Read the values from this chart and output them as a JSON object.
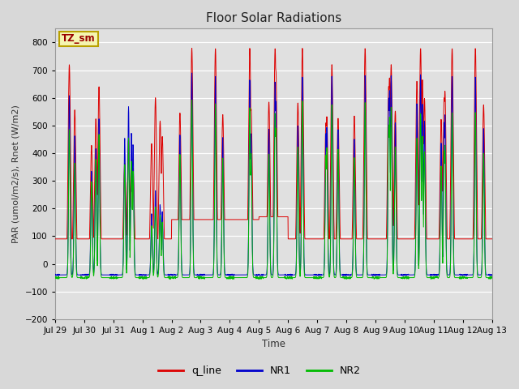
{
  "title": "Floor Solar Radiations",
  "ylabel": "PAR (umol/m2/s), Rnet (W/m2)",
  "xlabel": "Time",
  "ylim": [
    -200,
    850
  ],
  "yticks": [
    -200,
    -100,
    0,
    100,
    200,
    300,
    400,
    500,
    600,
    700,
    800
  ],
  "bg_color": "#e0e0e0",
  "fig_color": "#d8d8d8",
  "legend_label": "TZ_sm",
  "legend_box_color": "#f5f5b0",
  "legend_border_color": "#b8a000",
  "line_colors": {
    "q_line": "#dd0000",
    "NR1": "#0000cc",
    "NR2": "#00bb00"
  },
  "tick_labels": [
    "Jul 29",
    "Jul 30",
    "Jul 31",
    "Aug 1",
    "Aug 2",
    "Aug 3",
    "Aug 4",
    "Aug 5",
    "Aug 6",
    "Aug 7",
    "Aug 8",
    "Aug 9",
    "Aug 10",
    "Aug 11",
    "Aug 12",
    "Aug 13"
  ],
  "q_peaks": [
    720,
    640,
    450,
    600,
    780,
    780,
    780,
    780,
    780,
    720,
    780,
    720,
    780,
    780,
    780
  ],
  "nr1_peaks": [
    650,
    560,
    610,
    300,
    730,
    720,
    710,
    700,
    720,
    720,
    720,
    720,
    730,
    720,
    720
  ],
  "nr2_peaks": [
    540,
    520,
    500,
    260,
    640,
    630,
    620,
    600,
    640,
    630,
    640,
    620,
    600,
    600,
    605
  ],
  "q_nights": [
    90,
    90,
    90,
    90,
    160,
    160,
    160,
    170,
    90,
    90,
    90,
    90,
    90,
    90,
    90
  ],
  "nr1_night": -40,
  "nr2_night": -50
}
